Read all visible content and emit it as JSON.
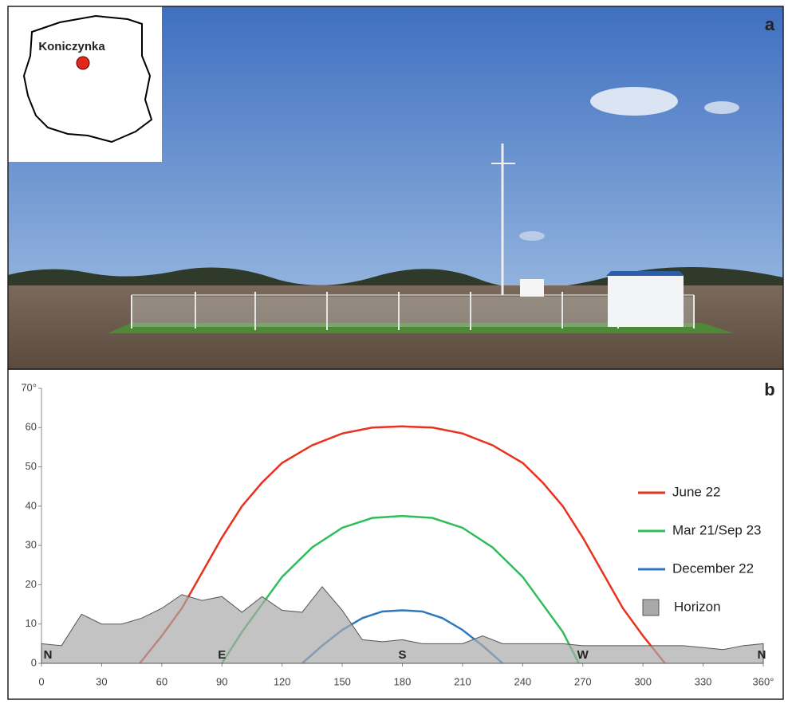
{
  "panel_a": {
    "label": "a",
    "map_label": "Koniczynka"
  },
  "chart_data": {
    "type": "line",
    "panel_label": "b",
    "xlim": [
      0,
      360
    ],
    "ylim": [
      0,
      70
    ],
    "xticks": [
      0,
      30,
      60,
      90,
      120,
      150,
      180,
      210,
      240,
      270,
      300,
      330,
      {
        "value": 360,
        "label": "360°"
      }
    ],
    "yticks": [
      0,
      10,
      20,
      30,
      40,
      50,
      60,
      {
        "value": 70,
        "label": "70°"
      }
    ],
    "legend": "right",
    "annotations": [
      {
        "text": "N",
        "x": 0
      },
      {
        "text": "E",
        "x": 90
      },
      {
        "text": "S",
        "x": 180
      },
      {
        "text": "W",
        "x": 270
      },
      {
        "text": "N",
        "x": 360
      }
    ],
    "series": [
      {
        "name": "June 22",
        "color": "#e8321e",
        "style": "line",
        "x": [
          49,
          60,
          70,
          80,
          90,
          100,
          110,
          120,
          135,
          150,
          165,
          180,
          195,
          210,
          225,
          240,
          250,
          260,
          270,
          280,
          290,
          300,
          311
        ],
        "values": [
          0,
          7,
          14,
          23,
          32,
          40,
          46,
          51,
          55.5,
          58.5,
          60,
          60.3,
          60,
          58.5,
          55.5,
          51,
          46,
          40,
          32,
          23,
          14,
          7,
          0
        ]
      },
      {
        "name": "Mar 21/Sep 23",
        "color": "#2ebd59",
        "style": "line",
        "x": [
          90,
          100,
          110,
          120,
          135,
          150,
          165,
          180,
          195,
          210,
          225,
          240,
          250,
          260,
          268
        ],
        "values": [
          0,
          8,
          15,
          22,
          29.5,
          34.5,
          37,
          37.5,
          37,
          34.5,
          29.5,
          22,
          15,
          8,
          0
        ]
      },
      {
        "name": "December 22",
        "color": "#2e78c0",
        "style": "line",
        "x": [
          130,
          140,
          150,
          160,
          170,
          180,
          190,
          200,
          210,
          220,
          230
        ],
        "values": [
          0,
          4.5,
          8.5,
          11.5,
          13.2,
          13.5,
          13.2,
          11.5,
          8.5,
          4.5,
          0
        ]
      },
      {
        "name": "Horizon",
        "color": "#a9a9a9",
        "style": "area",
        "x": [
          0,
          10,
          20,
          30,
          40,
          50,
          60,
          70,
          80,
          90,
          100,
          110,
          120,
          130,
          140,
          150,
          160,
          170,
          180,
          190,
          210,
          220,
          230,
          260,
          270,
          300,
          320,
          330,
          340,
          350,
          360
        ],
        "values": [
          5,
          4.5,
          12.5,
          10,
          10,
          11.5,
          14,
          17.5,
          16,
          17,
          13,
          17,
          13.5,
          13,
          19.5,
          13.5,
          6,
          5.5,
          6,
          5,
          5,
          7,
          5,
          5,
          4.5,
          4.5,
          4.5,
          4,
          3.5,
          4.5,
          5
        ]
      }
    ]
  }
}
